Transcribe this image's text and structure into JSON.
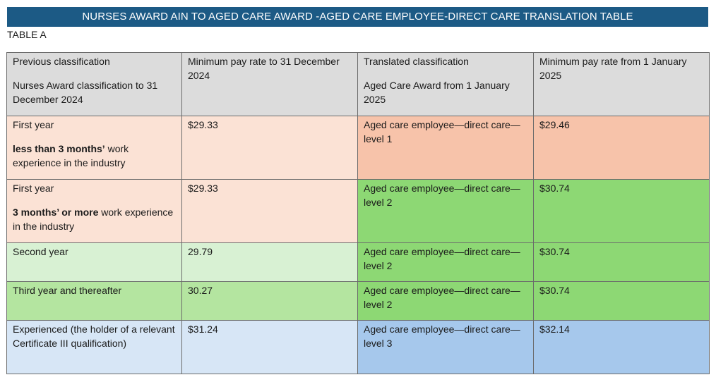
{
  "title": "NURSES AWARD AIN TO AGED CARE AWARD -AGED CARE EMPLOYEE-DIRECT CARE TRANSLATION TABLE",
  "table_label": "TABLE A",
  "header": {
    "col1_line1": "Previous classification",
    "col1_line2": "Nurses Award classification to 31 December 2024",
    "col2": "Minimum pay rate to 31 December 2024",
    "col3_line1": "Translated classification",
    "col3_line2": "Aged Care Award from 1 January 2025",
    "col4": "Minimum pay rate from 1 January 2025"
  },
  "rows": [
    {
      "prev_title": "First year",
      "prev_bold": "less than 3 months’",
      "prev_rest": " work experience in the industry",
      "old_rate": "$29.33",
      "new_class": "Aged care employee—direct care—level 1",
      "new_rate": "$29.46"
    },
    {
      "prev_title": "First year",
      "prev_bold": "3 months’ or more",
      "prev_rest": " work experience in the industry",
      "old_rate": "$29.33",
      "new_class": "Aged care employee—direct care—level 2",
      "new_rate": "$30.74"
    },
    {
      "prev_title": "Second year",
      "old_rate": "29.79",
      "new_class": "Aged care employee—direct care—level 2",
      "new_rate": "$30.74"
    },
    {
      "prev_title": "Third year and thereafter",
      "old_rate": "30.27",
      "new_class": "Aged care employee—direct care—level 2",
      "new_rate": "$30.74"
    },
    {
      "prev_title": "Experienced (the holder of a relevant Certificate III qualification)",
      "old_rate": "$31.24",
      "new_class": "Aged care employee—direct care—level 3",
      "new_rate": "$32.14"
    }
  ],
  "colors": {
    "title_bar": "#1c5a85",
    "header": "#dcdcdc",
    "peach": "#fbe2d5",
    "salmon": "#f7c3aa",
    "light_green": "#d8f1d3",
    "mid_green": "#b4e5a0",
    "green": "#8dd874",
    "light_blue": "#d7e6f6",
    "blue": "#a6c8ec"
  }
}
